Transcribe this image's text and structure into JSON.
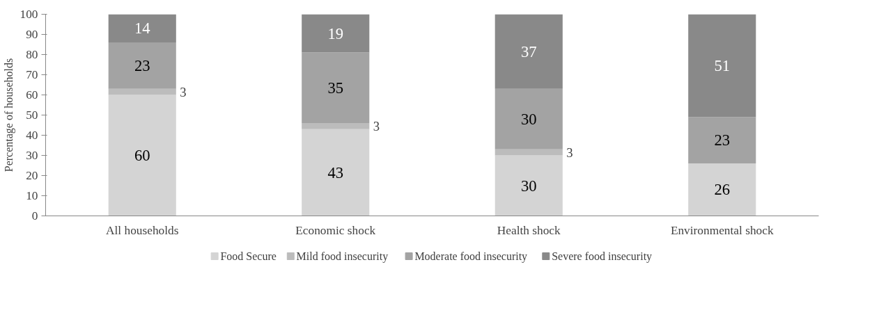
{
  "chart_data": {
    "type": "bar",
    "stacked": true,
    "ylabel": "Percentage of households",
    "categories": [
      "All households",
      "Economic shock",
      "Health shock",
      "Environmental shock"
    ],
    "series": [
      {
        "name": "Food Secure",
        "color": "#d4d4d4",
        "values": [
          60,
          43,
          30,
          26
        ],
        "value_labels": [
          "60",
          "43",
          "30",
          "26"
        ]
      },
      {
        "name": "Mild food insecurity",
        "color": "#bcbcbc",
        "values": [
          3,
          3,
          3,
          0
        ],
        "value_labels": [
          "3",
          "3",
          "3",
          null
        ]
      },
      {
        "name": "Moderate food insecurity",
        "color": "#a3a3a3",
        "values": [
          23,
          35,
          30,
          23
        ],
        "value_labels": [
          "23",
          "35",
          "30",
          "23"
        ]
      },
      {
        "name": "Severe food insecurity",
        "color": "#898989",
        "values": [
          14,
          19,
          37,
          51
        ],
        "value_labels": [
          "14",
          "19",
          "37",
          "51"
        ]
      }
    ],
    "ylim": [
      0,
      100
    ],
    "yticks": [
      0,
      10,
      20,
      30,
      40,
      50,
      60,
      70,
      80,
      90,
      100
    ],
    "grid": false,
    "legend": "bottom"
  }
}
